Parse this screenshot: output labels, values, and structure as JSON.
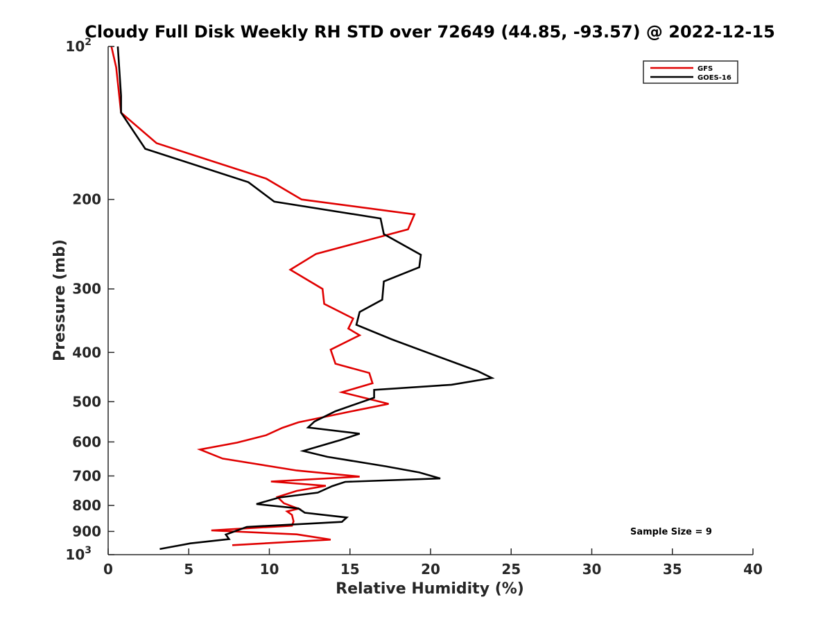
{
  "chart_data": {
    "type": "line",
    "title": "Cloudy Full Disk Weekly RH STD over 72649 (44.85, -93.57) @ 2022-12-15",
    "xlabel": "Relative Humidity (%)",
    "ylabel": "Pressure (mb)",
    "xlim": [
      0,
      40
    ],
    "ylim": [
      100,
      1000
    ],
    "y_scale": "log",
    "y_reversed": true,
    "grid": false,
    "legend_position": "top-right",
    "x_ticks": [
      "0",
      "5",
      "10",
      "15",
      "20",
      "25",
      "30",
      "35",
      "40"
    ],
    "y_ticks": [
      {
        "value": 100,
        "base": "10",
        "exp": "2"
      },
      {
        "value": 200,
        "label": "200"
      },
      {
        "value": 300,
        "label": "300"
      },
      {
        "value": 400,
        "label": "400"
      },
      {
        "value": 500,
        "label": "500"
      },
      {
        "value": 600,
        "label": "600"
      },
      {
        "value": 700,
        "label": "700"
      },
      {
        "value": 800,
        "label": "800"
      },
      {
        "value": 900,
        "label": "900"
      },
      {
        "value": 1000,
        "base": "10",
        "exp": "3"
      }
    ],
    "annotation": "Sample Size = 9",
    "series": [
      {
        "name": "GFS",
        "color": "#e00000",
        "points": [
          [
            0.2,
            100
          ],
          [
            0.5,
            110
          ],
          [
            0.8,
            135
          ],
          [
            3.0,
            155
          ],
          [
            9.8,
            182
          ],
          [
            12.0,
            200
          ],
          [
            19.0,
            214
          ],
          [
            18.6,
            229
          ],
          [
            12.9,
            256
          ],
          [
            11.3,
            275
          ],
          [
            13.3,
            300
          ],
          [
            13.4,
            321
          ],
          [
            15.2,
            343
          ],
          [
            14.9,
            359
          ],
          [
            15.6,
            370
          ],
          [
            13.8,
            395
          ],
          [
            14.1,
            421
          ],
          [
            16.2,
            439
          ],
          [
            16.4,
            460
          ],
          [
            14.5,
            479
          ],
          [
            17.4,
            505
          ],
          [
            15.4,
            520
          ],
          [
            11.8,
            549
          ],
          [
            10.8,
            563
          ],
          [
            9.8,
            582
          ],
          [
            8.0,
            602
          ],
          [
            5.7,
            621
          ],
          [
            7.1,
            647
          ],
          [
            11.7,
            683
          ],
          [
            15.6,
            702
          ],
          [
            10.1,
            718
          ],
          [
            13.5,
            732
          ],
          [
            11.7,
            749
          ],
          [
            10.5,
            770
          ],
          [
            10.9,
            792
          ],
          [
            11.8,
            812
          ],
          [
            11.1,
            822
          ],
          [
            11.4,
            835
          ],
          [
            11.5,
            860
          ],
          [
            11.4,
            877
          ],
          [
            6.4,
            896
          ],
          [
            11.7,
            912
          ],
          [
            13.8,
            934
          ],
          [
            7.7,
            958
          ]
        ]
      },
      {
        "name": "GOES-16",
        "color": "#000000",
        "points": [
          [
            0.6,
            100
          ],
          [
            0.8,
            125
          ],
          [
            0.8,
            135
          ],
          [
            2.3,
            159
          ],
          [
            8.7,
            185
          ],
          [
            10.3,
            202
          ],
          [
            16.9,
            218
          ],
          [
            17.1,
            234
          ],
          [
            19.4,
            257
          ],
          [
            19.3,
            272
          ],
          [
            17.1,
            290
          ],
          [
            17.0,
            315
          ],
          [
            15.6,
            333
          ],
          [
            15.4,
            353
          ],
          [
            17.6,
            377
          ],
          [
            20.6,
            409
          ],
          [
            22.9,
            435
          ],
          [
            23.8,
            449
          ],
          [
            21.3,
            463
          ],
          [
            16.5,
            474
          ],
          [
            16.5,
            491
          ],
          [
            14.1,
            522
          ],
          [
            12.8,
            547
          ],
          [
            12.4,
            562
          ],
          [
            15.6,
            578
          ],
          [
            14.4,
            595
          ],
          [
            12.1,
            625
          ],
          [
            13.6,
            642
          ],
          [
            17.2,
            670
          ],
          [
            19.3,
            689
          ],
          [
            20.6,
            708
          ],
          [
            14.7,
            719
          ],
          [
            13.9,
            733
          ],
          [
            13.0,
            755
          ],
          [
            10.6,
            772
          ],
          [
            9.2,
            795
          ],
          [
            11.8,
            811
          ],
          [
            12.2,
            827
          ],
          [
            14.8,
            845
          ],
          [
            14.5,
            862
          ],
          [
            8.6,
            882
          ],
          [
            7.3,
            913
          ],
          [
            7.5,
            932
          ],
          [
            5.1,
            950
          ],
          [
            3.2,
            975
          ]
        ]
      }
    ]
  }
}
